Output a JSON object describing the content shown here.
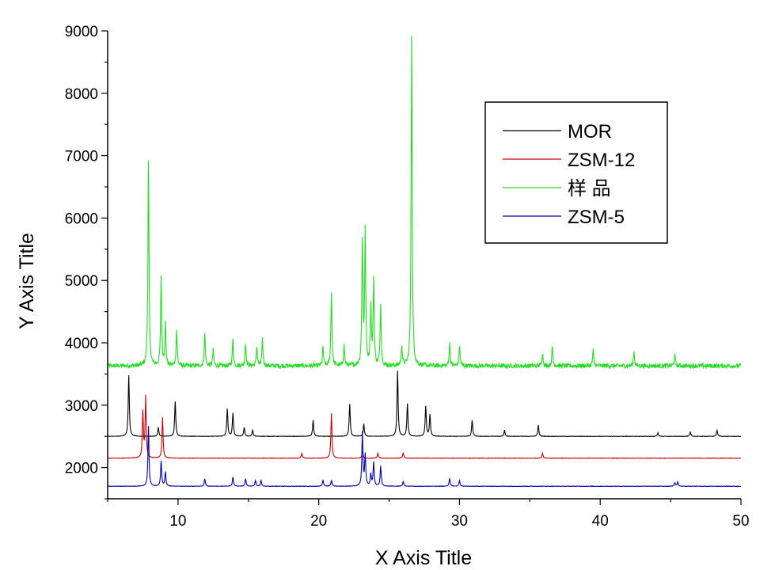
{
  "chart_data": {
    "type": "line",
    "title": "",
    "xlabel": "X Axis Title",
    "ylabel": "Y Axis Title",
    "xlim": [
      5,
      50
    ],
    "ylim": [
      1500,
      9000
    ],
    "x_ticks": [
      10,
      20,
      30,
      40,
      50
    ],
    "y_ticks": [
      2000,
      3000,
      4000,
      5000,
      6000,
      7000,
      8000,
      9000
    ],
    "grid": false,
    "legend_position": "top-right",
    "series": [
      {
        "name": "MOR",
        "color": "#000000",
        "baseline": 2500,
        "noise": 0,
        "peaks": [
          [
            6.5,
            3480
          ],
          [
            8.6,
            2650
          ],
          [
            9.8,
            3060
          ],
          [
            13.5,
            2940
          ],
          [
            13.9,
            2870
          ],
          [
            14.7,
            2640
          ],
          [
            15.3,
            2600
          ],
          [
            19.6,
            2760
          ],
          [
            22.2,
            3020
          ],
          [
            23.2,
            2700
          ],
          [
            25.6,
            3550
          ],
          [
            26.3,
            3020
          ],
          [
            27.6,
            2980
          ],
          [
            27.9,
            2850
          ],
          [
            30.9,
            2760
          ],
          [
            33.2,
            2600
          ],
          [
            35.6,
            2680
          ],
          [
            44.1,
            2560
          ],
          [
            46.4,
            2570
          ],
          [
            48.3,
            2600
          ]
        ]
      },
      {
        "name": "ZSM-12",
        "color": "#cc0000",
        "baseline": 2150,
        "noise": 0,
        "peaks": [
          [
            7.5,
            2880
          ],
          [
            7.7,
            3130
          ],
          [
            8.9,
            2800
          ],
          [
            18.8,
            2230
          ],
          [
            20.9,
            2870
          ],
          [
            23.1,
            2260
          ],
          [
            24.2,
            2230
          ],
          [
            26.0,
            2240
          ],
          [
            35.9,
            2230
          ]
        ]
      },
      {
        "name": "样 品",
        "color": "#22dd22",
        "baseline": 3630,
        "noise": 45,
        "peaks": [
          [
            7.9,
            6900
          ],
          [
            8.8,
            5060
          ],
          [
            9.1,
            4300
          ],
          [
            9.9,
            4200
          ],
          [
            11.9,
            4150
          ],
          [
            12.5,
            3880
          ],
          [
            13.9,
            4050
          ],
          [
            14.8,
            3980
          ],
          [
            15.6,
            3950
          ],
          [
            16.0,
            4050
          ],
          [
            20.3,
            3930
          ],
          [
            20.9,
            4830
          ],
          [
            21.8,
            3950
          ],
          [
            23.1,
            5600
          ],
          [
            23.3,
            5750
          ],
          [
            23.7,
            4550
          ],
          [
            23.9,
            5000
          ],
          [
            24.4,
            4600
          ],
          [
            25.9,
            3950
          ],
          [
            26.6,
            8950
          ],
          [
            29.3,
            3980
          ],
          [
            30.0,
            3950
          ],
          [
            35.9,
            3840
          ],
          [
            36.6,
            3930
          ],
          [
            39.5,
            3880
          ],
          [
            42.4,
            3850
          ],
          [
            45.3,
            3800
          ]
        ]
      },
      {
        "name": "ZSM-5",
        "color": "#0000aa",
        "baseline": 1700,
        "noise": 0,
        "peaks": [
          [
            7.9,
            2660
          ],
          [
            8.8,
            2100
          ],
          [
            9.1,
            1930
          ],
          [
            11.9,
            1820
          ],
          [
            13.9,
            1850
          ],
          [
            14.8,
            1820
          ],
          [
            15.5,
            1790
          ],
          [
            15.9,
            1790
          ],
          [
            20.3,
            1800
          ],
          [
            20.9,
            1800
          ],
          [
            23.1,
            2560
          ],
          [
            23.3,
            2200
          ],
          [
            23.7,
            1890
          ],
          [
            23.9,
            2080
          ],
          [
            24.4,
            2020
          ],
          [
            26.0,
            1780
          ],
          [
            29.3,
            1830
          ],
          [
            30.0,
            1790
          ],
          [
            45.3,
            1760
          ],
          [
            45.5,
            1770
          ]
        ]
      }
    ]
  }
}
